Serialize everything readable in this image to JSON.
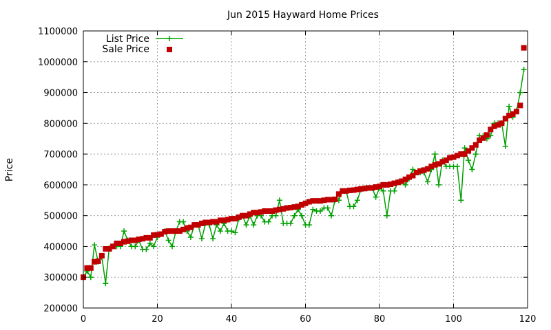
{
  "chart_data": {
    "type": "line",
    "title": "Jun 2015 Hayward Home Prices",
    "xlabel": "",
    "ylabel": "Price",
    "xlim": [
      0,
      120
    ],
    "ylim": [
      200000,
      1100000
    ],
    "x_ticks": [
      0,
      20,
      40,
      60,
      80,
      100,
      120
    ],
    "y_ticks": [
      200000,
      300000,
      400000,
      500000,
      600000,
      700000,
      800000,
      900000,
      1000000,
      1100000
    ],
    "grid": true,
    "legend_position": "top-left",
    "series": [
      {
        "name": "List Price",
        "style": "linespoints",
        "marker": "plus",
        "color": "#00a000",
        "values": [
          300000,
          320000,
          300000,
          405000,
          350000,
          365000,
          280000,
          395000,
          400000,
          400000,
          400000,
          450000,
          420000,
          400000,
          400000,
          420000,
          390000,
          390000,
          410000,
          400000,
          430000,
          440000,
          450000,
          420000,
          400000,
          450000,
          480000,
          480000,
          450000,
          430000,
          470000,
          470000,
          425000,
          475000,
          470000,
          425000,
          470000,
          450000,
          475000,
          450000,
          450000,
          445000,
          490000,
          500000,
          470000,
          500000,
          470000,
          500000,
          500000,
          480000,
          480000,
          500000,
          500000,
          550000,
          475000,
          475000,
          475000,
          500000,
          520000,
          500000,
          470000,
          470000,
          520000,
          515000,
          515000,
          525000,
          525000,
          500000,
          550000,
          550000,
          580000,
          580000,
          530000,
          530000,
          550000,
          585000,
          590000,
          590000,
          590000,
          560000,
          590000,
          580000,
          500000,
          580000,
          580000,
          610000,
          610000,
          600000,
          620000,
          650000,
          640000,
          640000,
          640000,
          610000,
          650000,
          700000,
          600000,
          680000,
          660000,
          660000,
          660000,
          660000,
          550000,
          720000,
          680000,
          650000,
          700000,
          760000,
          760000,
          750000,
          760000,
          800000,
          800000,
          800000,
          725000,
          855000,
          820000,
          840000,
          900000,
          975000
        ]
      },
      {
        "name": "Sale Price",
        "style": "points",
        "marker": "square",
        "color": "#c00000",
        "values": [
          300000,
          330000,
          330000,
          350000,
          352000,
          370000,
          392000,
          392000,
          400000,
          410000,
          410000,
          415000,
          417000,
          420000,
          420000,
          423000,
          425000,
          428000,
          428000,
          437000,
          438000,
          440000,
          448000,
          450000,
          450000,
          450000,
          450000,
          455000,
          460000,
          462000,
          470000,
          470000,
          475000,
          478000,
          478000,
          480000,
          480000,
          485000,
          485000,
          487000,
          490000,
          490000,
          495000,
          500000,
          500000,
          505000,
          510000,
          510000,
          512000,
          515000,
          515000,
          515000,
          518000,
          520000,
          522000,
          525000,
          526000,
          528000,
          530000,
          535000,
          540000,
          545000,
          548000,
          548000,
          548000,
          550000,
          552000,
          552000,
          553000,
          570000,
          580000,
          580000,
          582000,
          583000,
          585000,
          587000,
          588000,
          590000,
          590000,
          593000,
          595000,
          600000,
          600000,
          602000,
          605000,
          608000,
          612000,
          618000,
          625000,
          630000,
          640000,
          645000,
          648000,
          652000,
          660000,
          665000,
          668000,
          675000,
          680000,
          688000,
          690000,
          695000,
          700000,
          700000,
          710000,
          720000,
          730000,
          745000,
          752000,
          762000,
          780000,
          790000,
          795000,
          800000,
          815000,
          825000,
          830000,
          838000,
          858000,
          1045000
        ]
      }
    ]
  }
}
